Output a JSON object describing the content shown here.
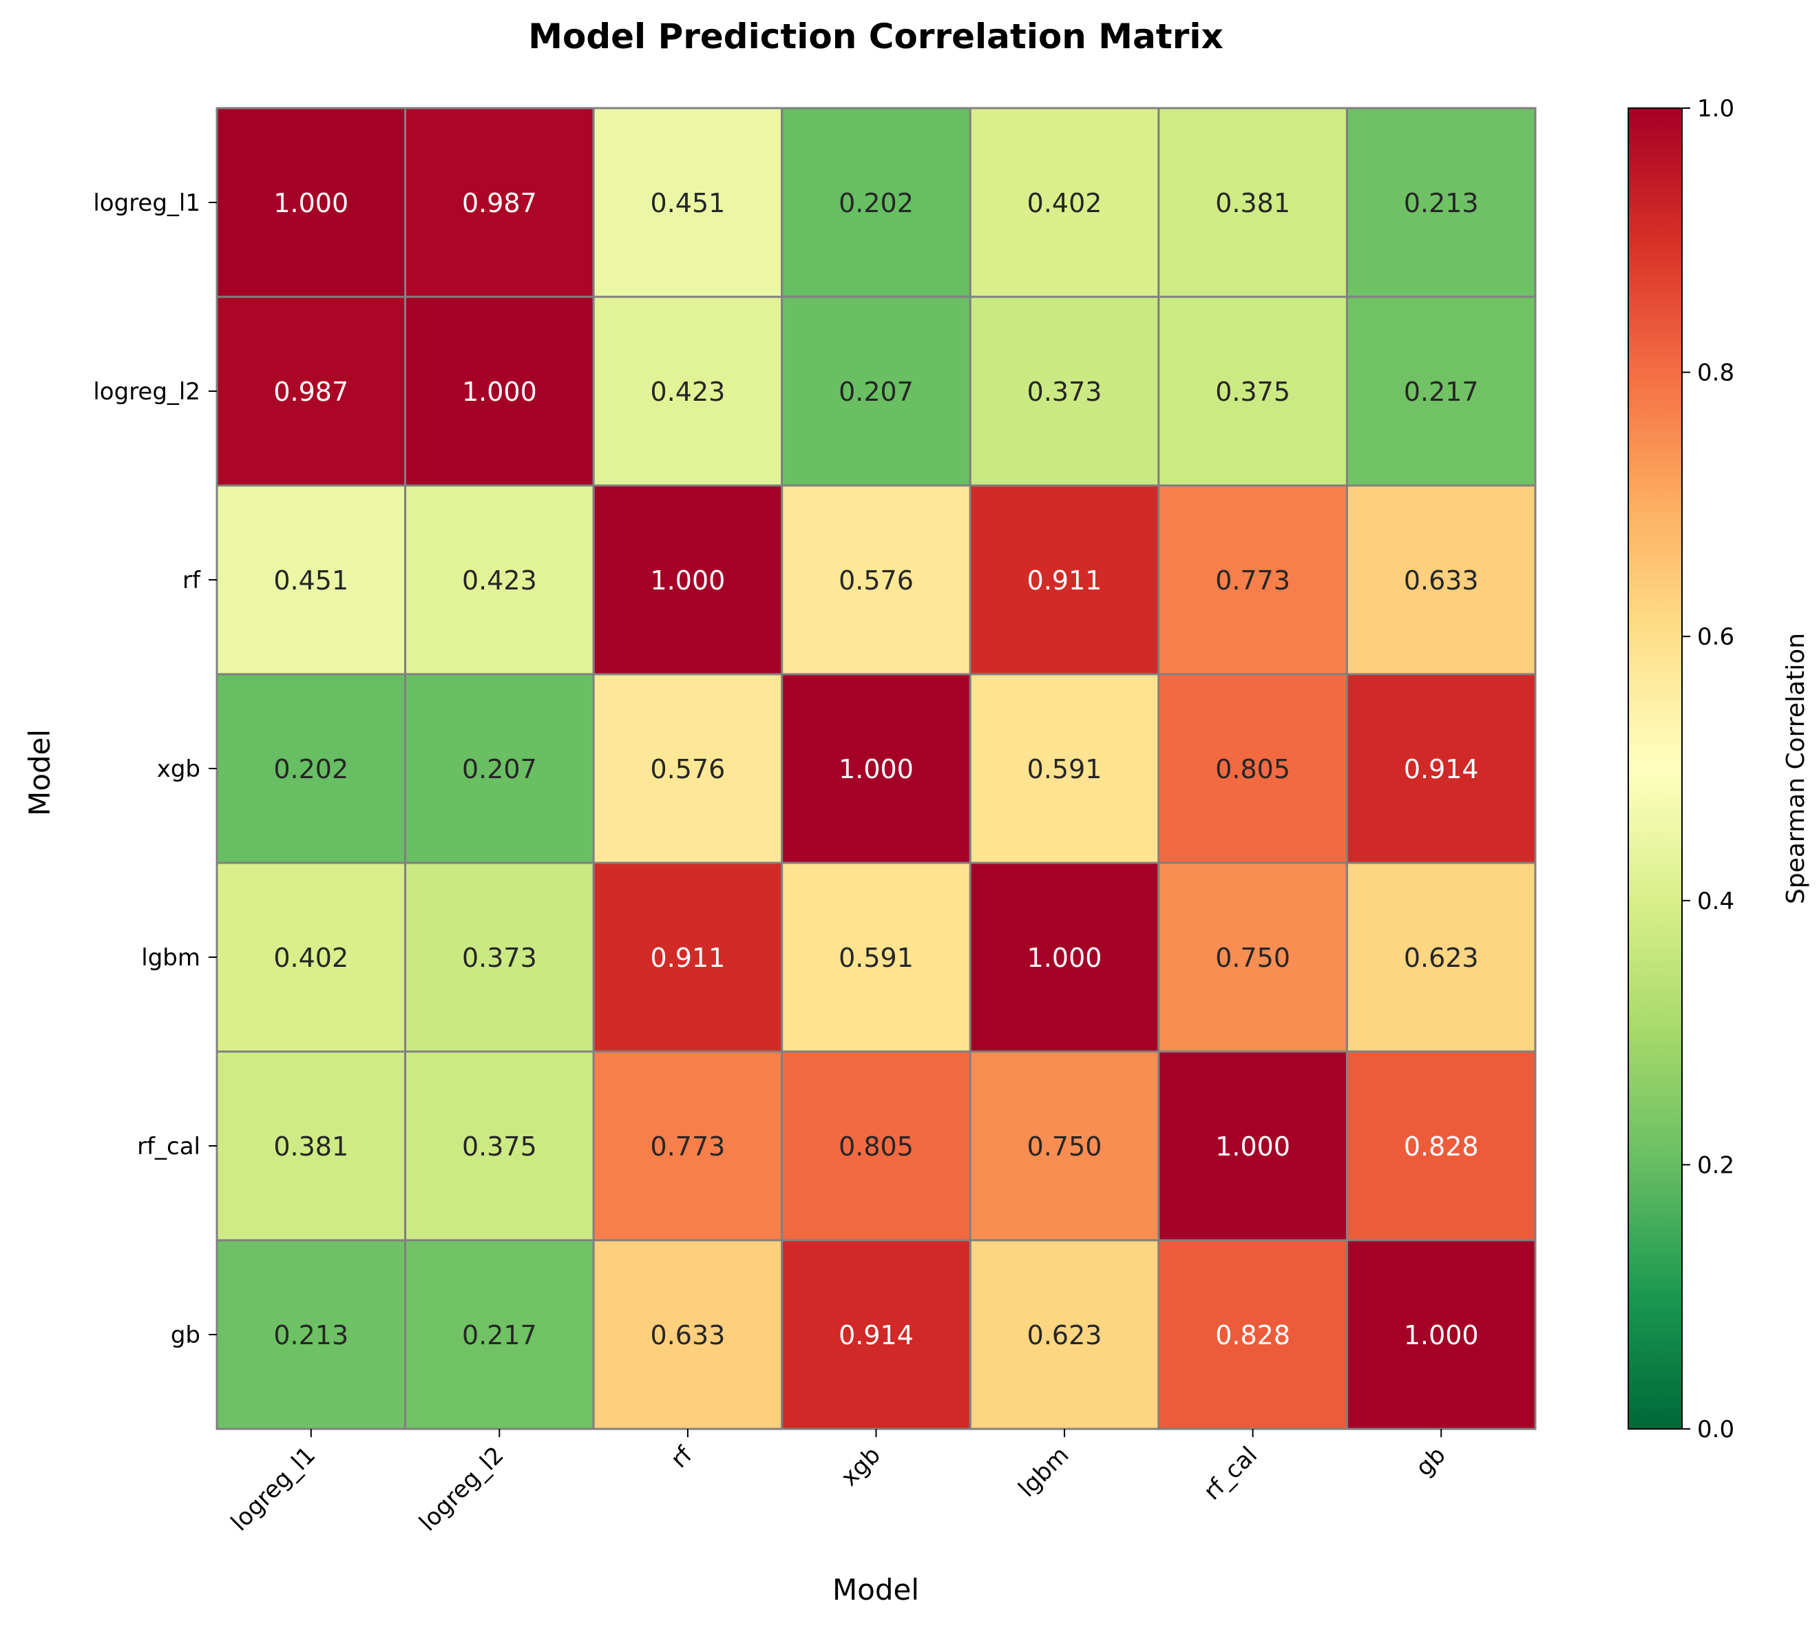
{
  "chart_data": {
    "type": "heatmap",
    "title": "Model Prediction Correlation Matrix",
    "xlabel": "Model",
    "ylabel": "Model",
    "colorbar_label": "Spearman Correlation",
    "colormap": "RdYlGn_r",
    "vmin": 0.0,
    "vmax": 1.0,
    "colorbar_ticks": [
      "0.0",
      "0.2",
      "0.4",
      "0.6",
      "0.8",
      "1.0"
    ],
    "x_categories": [
      "logreg_l1",
      "logreg_l2",
      "rf",
      "xgb",
      "lgbm",
      "rf_cal",
      "gb"
    ],
    "y_categories": [
      "logreg_l1",
      "logreg_l2",
      "rf",
      "xgb",
      "lgbm",
      "rf_cal",
      "gb"
    ],
    "values": [
      [
        1.0,
        0.987,
        0.451,
        0.202,
        0.402,
        0.381,
        0.213
      ],
      [
        0.987,
        1.0,
        0.423,
        0.207,
        0.373,
        0.375,
        0.217
      ],
      [
        0.451,
        0.423,
        1.0,
        0.576,
        0.911,
        0.773,
        0.633
      ],
      [
        0.202,
        0.207,
        0.576,
        1.0,
        0.591,
        0.805,
        0.914
      ],
      [
        0.402,
        0.373,
        0.911,
        0.591,
        1.0,
        0.75,
        0.623
      ],
      [
        0.381,
        0.375,
        0.773,
        0.805,
        0.75,
        1.0,
        0.828
      ],
      [
        0.213,
        0.217,
        0.633,
        0.914,
        0.623,
        0.828,
        1.0
      ]
    ],
    "value_format": "3 decimals",
    "cell_border_color": "#808080"
  }
}
